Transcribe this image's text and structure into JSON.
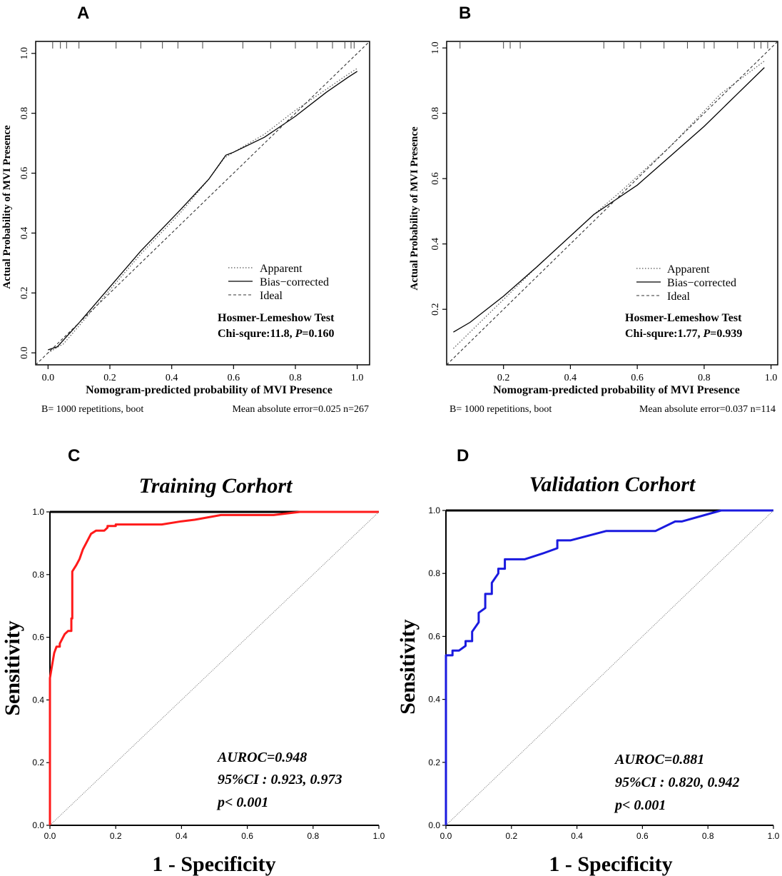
{
  "colors": {
    "axis": "#000000",
    "grid_ideal": "#333333",
    "training_roc": "#ff1a1a",
    "validation_roc": "#1a1adf",
    "apparent": "#555555"
  },
  "chart_data": [
    {
      "panel": "A",
      "type": "line",
      "title": "",
      "xlabel": "Nomogram-predicted probability of MVI Presence",
      "ylabel": "Actual Probability of MVI Presence",
      "xlim": [
        -0.04,
        1.04
      ],
      "ylim": [
        -0.04,
        1.04
      ],
      "xticks": [
        0.0,
        0.2,
        0.4,
        0.6,
        0.8,
        1.0
      ],
      "xtick_labels": [
        "0.0",
        "0.2",
        "0.4",
        "0.6",
        "0.8",
        "1.0"
      ],
      "yticks": [
        0.0,
        0.2,
        0.4,
        0.6,
        0.8,
        1.0
      ],
      "ytick_labels": [
        "0.0",
        "0.2",
        "0.4",
        "0.6",
        "0.8",
        "1.0"
      ],
      "rug": [
        0.015,
        0.04,
        0.06,
        0.1,
        0.22,
        0.3,
        0.37,
        0.42,
        0.5,
        0.63,
        0.72,
        0.8,
        0.87,
        0.92,
        0.96,
        0.98,
        0.99
      ],
      "series": [
        {
          "name": "Apparent",
          "style": "dotted",
          "x": [
            0.0,
            0.05,
            0.1,
            0.2,
            0.3,
            0.43,
            0.52,
            0.57,
            0.6,
            0.7,
            0.8,
            0.9,
            0.97,
            1.0
          ],
          "y": [
            0.0,
            0.03,
            0.09,
            0.21,
            0.33,
            0.47,
            0.58,
            0.65,
            0.67,
            0.73,
            0.81,
            0.88,
            0.93,
            0.95
          ]
        },
        {
          "name": "Bias−corrected",
          "style": "solid",
          "x": [
            0.0,
            0.03,
            0.1,
            0.2,
            0.3,
            0.43,
            0.52,
            0.575,
            0.6,
            0.7,
            0.8,
            0.9,
            0.97,
            1.0
          ],
          "y": [
            0.01,
            0.02,
            0.1,
            0.22,
            0.34,
            0.48,
            0.58,
            0.66,
            0.67,
            0.72,
            0.79,
            0.87,
            0.92,
            0.94
          ]
        },
        {
          "name": "Ideal",
          "style": "dashed",
          "x": [
            -0.04,
            1.04
          ],
          "y": [
            -0.04,
            1.04
          ]
        }
      ],
      "test_title": "Hosmer-Lemeshow Test",
      "test_prefix": "Chi-squre:11.8, ",
      "test_p_label": "P",
      "test_p_value": "=0.160",
      "footer_left": "B= 1000 repetitions, boot",
      "footer_right": "Mean absolute error=0.025 n=267"
    },
    {
      "panel": "B",
      "type": "line",
      "title": "",
      "xlabel": "Nomogram-predicted probability of MVI Presence",
      "ylabel": "Actual Probability of MVI Presence",
      "xlim": [
        0.03,
        1.02
      ],
      "ylim": [
        0.03,
        1.02
      ],
      "xticks": [
        0.2,
        0.4,
        0.6,
        0.8,
        1.0
      ],
      "xtick_labels": [
        "0.2",
        "0.4",
        "0.6",
        "0.8",
        "1.0"
      ],
      "yticks": [
        0.2,
        0.4,
        0.6,
        0.8,
        1.0
      ],
      "ytick_labels": [
        "0.2",
        "0.4",
        "0.6",
        "0.8",
        "1.0"
      ],
      "rug": [
        0.07,
        0.2,
        0.22,
        0.25,
        0.5,
        0.56,
        0.61,
        0.68,
        0.75,
        0.8,
        0.83,
        0.9,
        0.95,
        0.97,
        0.99
      ],
      "series": [
        {
          "name": "Apparent",
          "style": "dotted",
          "x": [
            0.05,
            0.15,
            0.3,
            0.47,
            0.55,
            0.7,
            0.85,
            0.98
          ],
          "y": [
            0.08,
            0.18,
            0.33,
            0.49,
            0.56,
            0.7,
            0.86,
            0.96
          ]
        },
        {
          "name": "Bias−corrected",
          "style": "solid",
          "x": [
            0.05,
            0.1,
            0.2,
            0.3,
            0.47,
            0.6,
            0.7,
            0.8,
            0.9,
            0.98
          ],
          "y": [
            0.13,
            0.16,
            0.24,
            0.33,
            0.49,
            0.58,
            0.67,
            0.76,
            0.86,
            0.94
          ]
        },
        {
          "name": "Ideal",
          "style": "dashed",
          "x": [
            0.03,
            1.02
          ],
          "y": [
            0.03,
            1.02
          ]
        }
      ],
      "test_title": "Hosmer-Lemeshow Test",
      "test_prefix": "Chi-squre:1.77, ",
      "test_p_label": "P",
      "test_p_value": "=0.939",
      "footer_left": "B= 1000 repetitions, boot",
      "footer_right": "Mean absolute error=0.037 n=114"
    },
    {
      "panel": "C",
      "type": "line",
      "title": "Training Corhort",
      "xlabel": "1 - Specificity",
      "ylabel": "Sensitivity",
      "xlim": [
        0,
        1
      ],
      "ylim": [
        0,
        1
      ],
      "xticks": [
        0.0,
        0.2,
        0.4,
        0.6,
        0.8,
        1.0
      ],
      "xtick_labels": [
        "0.0",
        "0.2",
        "0.4",
        "0.6",
        "0.8",
        "1.0"
      ],
      "yticks": [
        0.0,
        0.2,
        0.4,
        0.6,
        0.8,
        1.0
      ],
      "ytick_labels": [
        "0.0",
        "0.2",
        "0.4",
        "0.6",
        "0.8",
        "1.0"
      ],
      "series": [
        {
          "name": "ROC",
          "style": "roc",
          "x": [
            0,
            0,
            0.008,
            0.013,
            0.02,
            0.03,
            0.03,
            0.04,
            0.045,
            0.055,
            0.065,
            0.065,
            0.068,
            0.068,
            0.08,
            0.09,
            0.1,
            0.11,
            0.125,
            0.14,
            0.155,
            0.165,
            0.175,
            0.175,
            0.19,
            0.2,
            0.2,
            0.22,
            0.34,
            0.4,
            0.44,
            0.52,
            0.68,
            0.76,
            1.0
          ],
          "y": [
            0,
            0.47,
            0.52,
            0.55,
            0.57,
            0.57,
            0.58,
            0.6,
            0.61,
            0.62,
            0.62,
            0.66,
            0.66,
            0.81,
            0.83,
            0.85,
            0.88,
            0.9,
            0.93,
            0.94,
            0.94,
            0.94,
            0.95,
            0.955,
            0.955,
            0.955,
            0.96,
            0.96,
            0.96,
            0.97,
            0.975,
            0.99,
            0.99,
            1.0,
            1.0
          ]
        },
        {
          "name": "Reference",
          "style": "reference",
          "x": [
            0,
            1
          ],
          "y": [
            0,
            1
          ]
        }
      ],
      "auroc": "AUROC=0.948",
      "ci": "95%CI :  0.923, 0.973",
      "pval": "p< 0.001",
      "color": "#ff1a1a"
    },
    {
      "panel": "D",
      "type": "line",
      "title": "Validation Corhort",
      "xlabel": "1 - Specificity",
      "ylabel": "Sensitivity",
      "xlim": [
        0,
        1
      ],
      "ylim": [
        0,
        1
      ],
      "xticks": [
        0.0,
        0.2,
        0.4,
        0.6,
        0.8,
        1.0
      ],
      "xtick_labels": [
        "0.0",
        "0.2",
        "0.4",
        "0.6",
        "0.8",
        "1.0"
      ],
      "yticks": [
        0.0,
        0.2,
        0.4,
        0.6,
        0.8,
        1.0
      ],
      "ytick_labels": [
        "0.0",
        "0.2",
        "0.4",
        "0.6",
        "0.8",
        "1.0"
      ],
      "series": [
        {
          "name": "ROC",
          "style": "roc",
          "x": [
            0,
            0,
            0.02,
            0.02,
            0.04,
            0.06,
            0.06,
            0.08,
            0.08,
            0.1,
            0.1,
            0.12,
            0.12,
            0.14,
            0.14,
            0.16,
            0.16,
            0.18,
            0.18,
            0.24,
            0.3,
            0.34,
            0.34,
            0.38,
            0.49,
            0.64,
            0.7,
            0.72,
            0.84,
            1.0
          ],
          "y": [
            0,
            0.54,
            0.54,
            0.555,
            0.555,
            0.57,
            0.585,
            0.585,
            0.615,
            0.645,
            0.675,
            0.69,
            0.735,
            0.735,
            0.77,
            0.8,
            0.815,
            0.815,
            0.845,
            0.845,
            0.865,
            0.88,
            0.905,
            0.905,
            0.935,
            0.935,
            0.965,
            0.965,
            1.0,
            1.0
          ]
        },
        {
          "name": "Reference",
          "style": "reference",
          "x": [
            0,
            1
          ],
          "y": [
            0,
            1
          ]
        }
      ],
      "auroc": "AUROC=0.881",
      "ci": "95%CI :  0.820, 0.942",
      "pval": "p< 0.001",
      "color": "#1a1adf"
    }
  ]
}
